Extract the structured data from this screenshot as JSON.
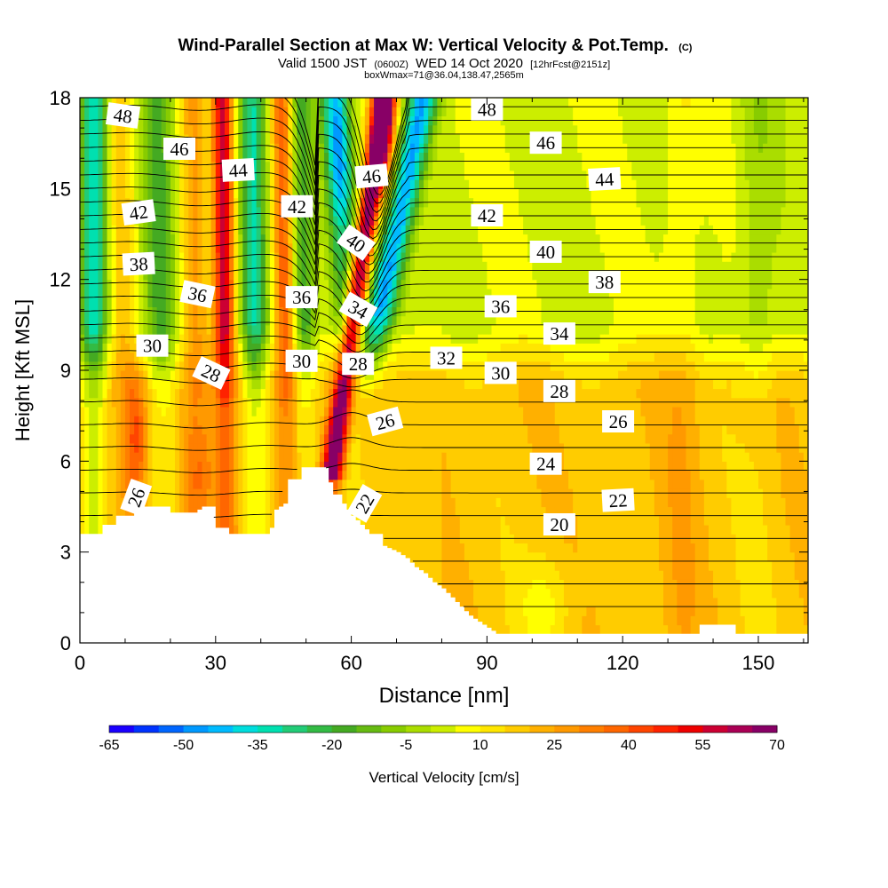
{
  "chart_data": {
    "type": "heatmap",
    "title": "Wind-Parallel Section at Max W: Vertical Velocity & Pot.Temp.",
    "title_mark": "(C)",
    "subtitle_main": "Valid 1500 JST",
    "subtitle_utc": "(0600Z)",
    "subtitle_date": "WED 14 Oct 2020",
    "subtitle_fcst": "[12hrFcst@2151z]",
    "subtitle2": "boxWmax=71@36.04,138.47,2565m",
    "xlabel": "Distance [nm]",
    "ylabel": "Height [Kft MSL]",
    "xlim": [
      0,
      161
    ],
    "ylim": [
      0,
      18
    ],
    "x_ticks": [
      0,
      30,
      60,
      90,
      120,
      150
    ],
    "x_tick_labels": [
      "0",
      "30",
      "60",
      "90",
      "120",
      "150"
    ],
    "y_ticks": [
      0,
      3,
      6,
      9,
      12,
      15,
      18
    ],
    "y_tick_labels": [
      "0",
      "3",
      "6",
      "9",
      "12",
      "15",
      "18"
    ],
    "colorbar": {
      "label": "Vertical Velocity [cm/s]",
      "min": -65,
      "max": 70,
      "step": 5,
      "tick_labels": [
        "-65",
        "-50",
        "-35",
        "-20",
        "-5",
        "10",
        "25",
        "40",
        "55",
        "70"
      ],
      "colors": [
        "#1a00ff",
        "#0033ff",
        "#0066ff",
        "#0099ff",
        "#00bbff",
        "#00dddd",
        "#00e0b0",
        "#22cc77",
        "#33bb44",
        "#44aa22",
        "#66bb11",
        "#88cc00",
        "#aadd00",
        "#ccee00",
        "#ffff00",
        "#ffe600",
        "#ffcc00",
        "#ffb000",
        "#ff9900",
        "#ff7f00",
        "#ff6600",
        "#ff4400",
        "#ff2200",
        "#ee0000",
        "#cc0033",
        "#aa0055",
        "#880066"
      ]
    },
    "theta_contours": {
      "units": "C",
      "labels": [
        {
          "value": "48",
          "x": 9.5,
          "y": 17.4,
          "rot": 8
        },
        {
          "value": "46",
          "x": 22,
          "y": 16.3,
          "rot": 0
        },
        {
          "value": "44",
          "x": 35,
          "y": 15.6,
          "rot": -3
        },
        {
          "value": "42",
          "x": 13,
          "y": 14.2,
          "rot": -8
        },
        {
          "value": "38",
          "x": 13,
          "y": 12.5,
          "rot": -3
        },
        {
          "value": "36",
          "x": 26,
          "y": 11.5,
          "rot": 12
        },
        {
          "value": "30",
          "x": 16,
          "y": 9.8,
          "rot": 0
        },
        {
          "value": "28",
          "x": 29,
          "y": 8.9,
          "rot": 25
        },
        {
          "value": "26",
          "x": 12.5,
          "y": 4.8,
          "rot": -70
        },
        {
          "value": "42",
          "x": 48,
          "y": 14.4,
          "rot": 0
        },
        {
          "value": "36",
          "x": 49,
          "y": 11.4,
          "rot": 0
        },
        {
          "value": "30",
          "x": 49,
          "y": 9.3,
          "rot": 0
        },
        {
          "value": "28",
          "x": 61.5,
          "y": 9.2,
          "rot": 0
        },
        {
          "value": "46",
          "x": 64.5,
          "y": 15.4,
          "rot": -5
        },
        {
          "value": "40",
          "x": 61,
          "y": 13.2,
          "rot": 35
        },
        {
          "value": "34",
          "x": 61.5,
          "y": 11.0,
          "rot": 30
        },
        {
          "value": "26",
          "x": 67.5,
          "y": 7.3,
          "rot": -15
        },
        {
          "value": "22",
          "x": 63,
          "y": 4.6,
          "rot": -60
        },
        {
          "value": "32",
          "x": 81,
          "y": 9.4,
          "rot": 0
        },
        {
          "value": "48",
          "x": 90,
          "y": 17.6,
          "rot": 0
        },
        {
          "value": "42",
          "x": 90,
          "y": 14.1,
          "rot": 0
        },
        {
          "value": "36",
          "x": 93,
          "y": 11.1,
          "rot": 0
        },
        {
          "value": "30",
          "x": 93,
          "y": 8.9,
          "rot": 0
        },
        {
          "value": "46",
          "x": 103,
          "y": 16.5,
          "rot": 0
        },
        {
          "value": "40",
          "x": 103,
          "y": 12.9,
          "rot": 0
        },
        {
          "value": "34",
          "x": 106,
          "y": 10.2,
          "rot": 0
        },
        {
          "value": "28",
          "x": 106,
          "y": 8.3,
          "rot": 0
        },
        {
          "value": "24",
          "x": 103,
          "y": 5.9,
          "rot": 0
        },
        {
          "value": "20",
          "x": 106,
          "y": 3.9,
          "rot": 0
        },
        {
          "value": "44",
          "x": 116,
          "y": 15.3,
          "rot": -3
        },
        {
          "value": "38",
          "x": 116,
          "y": 11.9,
          "rot": 0
        },
        {
          "value": "26",
          "x": 119,
          "y": 7.3,
          "rot": 0
        },
        {
          "value": "22",
          "x": 119,
          "y": 4.7,
          "rot": -3
        }
      ]
    }
  }
}
